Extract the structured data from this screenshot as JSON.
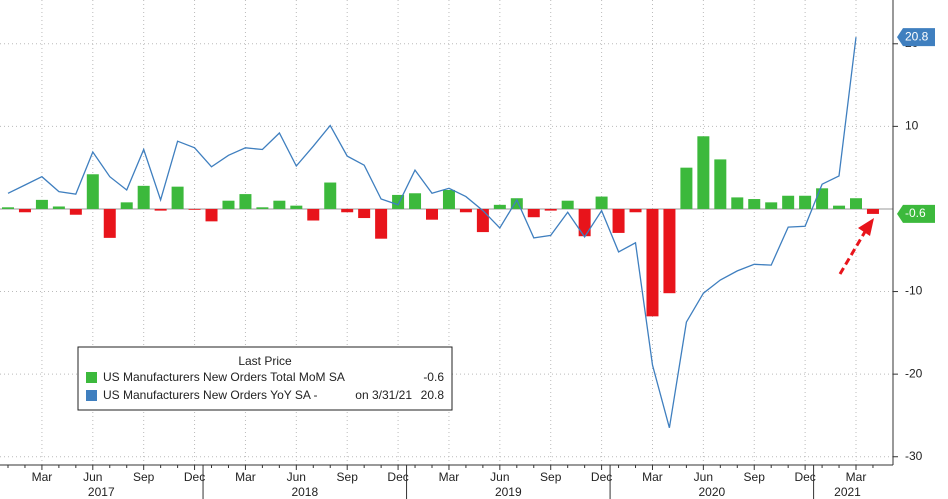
{
  "chart_data": {
    "type": "bar-line",
    "legend_title": "Last Price",
    "legend_note": "on 3/31/21",
    "categories": [
      null,
      null,
      "Mar",
      null,
      null,
      "Jun",
      null,
      null,
      "Sep",
      null,
      null,
      "Dec",
      null,
      null,
      "Mar",
      null,
      null,
      "Jun",
      null,
      null,
      "Sep",
      null,
      null,
      "Dec",
      null,
      null,
      "Mar",
      null,
      null,
      "Jun",
      null,
      null,
      "Sep",
      null,
      null,
      "Dec",
      null,
      null,
      "Mar",
      null,
      null,
      "Jun",
      null,
      null,
      "Sep",
      null,
      null,
      "Dec",
      null,
      null,
      "Mar",
      null
    ],
    "years": [
      "2017",
      "2018",
      "2019",
      "2020",
      "2021"
    ],
    "series": [
      {
        "name": "US Manufacturers New Orders Total MoM SA",
        "type": "bar",
        "color": "#3cb93c",
        "negative_color": "#e8141b",
        "values": [
          0.2,
          -0.4,
          1.1,
          0.3,
          -0.7,
          4.2,
          -3.5,
          0.8,
          2.8,
          -0.2,
          2.7,
          -0.1,
          -1.5,
          1.0,
          1.8,
          0.2,
          1.0,
          0.4,
          -1.4,
          3.2,
          -0.4,
          -1.1,
          -3.6,
          1.7,
          1.9,
          -1.3,
          2.3,
          -0.4,
          -2.8,
          0.5,
          1.3,
          -1.0,
          -0.2,
          1.0,
          -3.3,
          1.5,
          -2.9,
          -0.4,
          -13.0,
          -10.2,
          5.0,
          8.8,
          6.0,
          1.4,
          1.2,
          0.8,
          1.6,
          1.6,
          2.5,
          0.4,
          1.3,
          -0.6
        ]
      },
      {
        "name": "US Manufacturers New Orders YoY SA -",
        "type": "line",
        "color": "#3f7fbf",
        "values": [
          1.9,
          2.9,
          3.9,
          2.1,
          1.8,
          6.9,
          3.9,
          2.3,
          7.2,
          1.1,
          8.2,
          7.4,
          5.1,
          6.5,
          7.4,
          7.2,
          9.2,
          5.2,
          7.6,
          10.1,
          6.4,
          5.3,
          1.2,
          0.5,
          4.7,
          1.9,
          2.5,
          1.5,
          -0.2,
          -2.3,
          1.1,
          -3.5,
          -3.2,
          -0.4,
          -3.4,
          -0.2,
          -5.2,
          -4.1,
          -18.9,
          -26.5,
          -13.7,
          -10.2,
          -8.6,
          -7.5,
          -6.7,
          -6.8,
          -2.2,
          -2.1,
          3.0,
          4.0,
          20.8,
          null
        ]
      }
    ],
    "ylim": [
      -31,
      25.3
    ],
    "yticks": [
      -30,
      -20,
      -10,
      10,
      20
    ],
    "grid": true
  }
}
